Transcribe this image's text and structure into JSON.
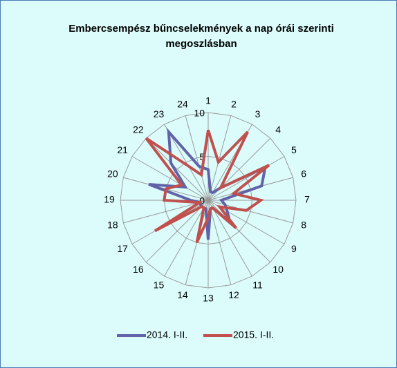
{
  "chart_data": {
    "type": "radar",
    "title": "Embercsempész bűncselekmények a nap órái szerinti megoszlásban",
    "categories": [
      "1",
      "2",
      "3",
      "4",
      "5",
      "6",
      "7",
      "8",
      "9",
      "10",
      "11",
      "12",
      "13",
      "14",
      "15",
      "16",
      "17",
      "18",
      "19",
      "20",
      "21",
      "22",
      "23",
      "24"
    ],
    "series": [
      {
        "name": "2014. I-II.",
        "color": "#6063a8",
        "values": [
          3.5,
          1,
          1,
          2,
          7.5,
          6.3,
          1.5,
          2,
          2.5,
          3.5,
          1,
          1,
          4.5,
          1,
          1,
          1,
          1,
          1,
          2,
          7,
          3,
          6,
          9,
          4
        ]
      },
      {
        "name": "2015. I-II.",
        "color": "#c0504d",
        "values": [
          8,
          4.5,
          9,
          2,
          8,
          3,
          6,
          4.5,
          1.5,
          4.5,
          1,
          1,
          2,
          5,
          1,
          1,
          7,
          1,
          5,
          5,
          3.5,
          10,
          4.5,
          3
        ]
      }
    ],
    "ylim": [
      0,
      10
    ],
    "yticks": [
      0,
      5,
      10
    ],
    "grid": true,
    "legend": "bottom"
  }
}
